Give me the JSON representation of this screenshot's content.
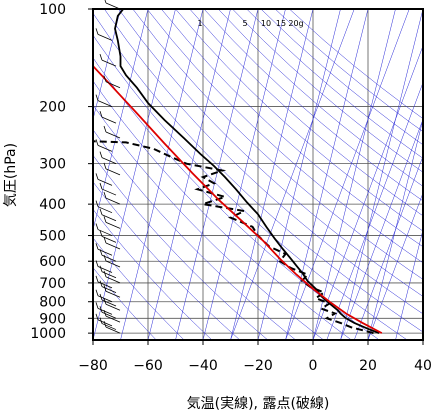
{
  "chart_data": {
    "type": "line",
    "title": "",
    "xlabel": "気温(実線), 露点(破線)",
    "ylabel": "気圧(hPa)",
    "xlim": [
      -80,
      40
    ],
    "ylim": [
      1050,
      100
    ],
    "y_scale": "log",
    "x_ticks": [
      {
        "value": -80,
        "label": "−80"
      },
      {
        "value": -60,
        "label": "−60"
      },
      {
        "value": -40,
        "label": "−40"
      },
      {
        "value": -20,
        "label": "−20"
      },
      {
        "value": 0,
        "label": "0"
      },
      {
        "value": 20,
        "label": "20"
      },
      {
        "value": 40,
        "label": "40"
      }
    ],
    "y_ticks": [
      100,
      200,
      300,
      400,
      500,
      600,
      700,
      800,
      900,
      1000
    ],
    "mixing_ratio_labels": [
      "1",
      "5",
      "10",
      "15",
      "20g"
    ],
    "series": [
      {
        "style": "solid",
        "color": "#000000",
        "points": [
          [
            24,
            1000
          ],
          [
            20,
            970
          ],
          [
            15,
            930
          ],
          [
            12,
            900
          ],
          [
            10,
            870
          ],
          [
            9,
            850
          ],
          [
            6,
            810
          ],
          [
            3,
            770
          ],
          [
            1,
            730
          ],
          [
            -2,
            690
          ],
          [
            -4,
            650
          ],
          [
            -6,
            620
          ],
          [
            -8,
            590
          ],
          [
            -11,
            550
          ],
          [
            -14,
            510
          ],
          [
            -17,
            470
          ],
          [
            -20,
            430
          ],
          [
            -24,
            395
          ],
          [
            -28,
            360
          ],
          [
            -32,
            330
          ],
          [
            -36,
            305
          ],
          [
            -41,
            280
          ],
          [
            -47,
            250
          ],
          [
            -54,
            220
          ],
          [
            -60,
            195
          ],
          [
            -64,
            175
          ],
          [
            -68,
            160
          ],
          [
            -70,
            150
          ],
          [
            -70,
            140
          ],
          [
            -71,
            125
          ],
          [
            -72,
            115
          ],
          [
            -71,
            105
          ],
          [
            -69,
            100
          ]
        ]
      },
      {
        "style": "dashed",
        "color": "#000000",
        "points": [
          [
            22,
            1000
          ],
          [
            14,
            960
          ],
          [
            10,
            930
          ],
          [
            5,
            900
          ],
          [
            8,
            870
          ],
          [
            3,
            840
          ],
          [
            6,
            810
          ],
          [
            1,
            780
          ],
          [
            4,
            750
          ],
          [
            -1,
            720
          ],
          [
            -4,
            690
          ],
          [
            -2,
            660
          ],
          [
            -8,
            630
          ],
          [
            -12,
            600
          ],
          [
            -10,
            570
          ],
          [
            -16,
            540
          ],
          [
            -20,
            500
          ],
          [
            -22,
            470
          ],
          [
            -30,
            440
          ],
          [
            -25,
            420
          ],
          [
            -40,
            400
          ],
          [
            -32,
            380
          ],
          [
            -42,
            360
          ],
          [
            -36,
            345
          ],
          [
            -40,
            330
          ],
          [
            -33,
            315
          ],
          [
            -46,
            300
          ],
          [
            -52,
            285
          ],
          [
            -58,
            270
          ],
          [
            -68,
            258
          ],
          [
            -80,
            256
          ]
        ]
      },
      {
        "style": "solid",
        "color": "#dd0000",
        "points": [
          [
            25,
            1000
          ],
          [
            18,
            930
          ],
          [
            12,
            870
          ],
          [
            6,
            800
          ],
          [
            0,
            730
          ],
          [
            -6,
            660
          ],
          [
            -12,
            590
          ],
          [
            -18,
            520
          ],
          [
            -26,
            450
          ],
          [
            -34,
            390
          ],
          [
            -44,
            320
          ],
          [
            -54,
            260
          ],
          [
            -64,
            210
          ],
          [
            -74,
            170
          ],
          [
            -80,
            150
          ]
        ]
      }
    ],
    "grid": true,
    "background_lines_color": "#2a2ad8",
    "wind_barbs": true
  }
}
